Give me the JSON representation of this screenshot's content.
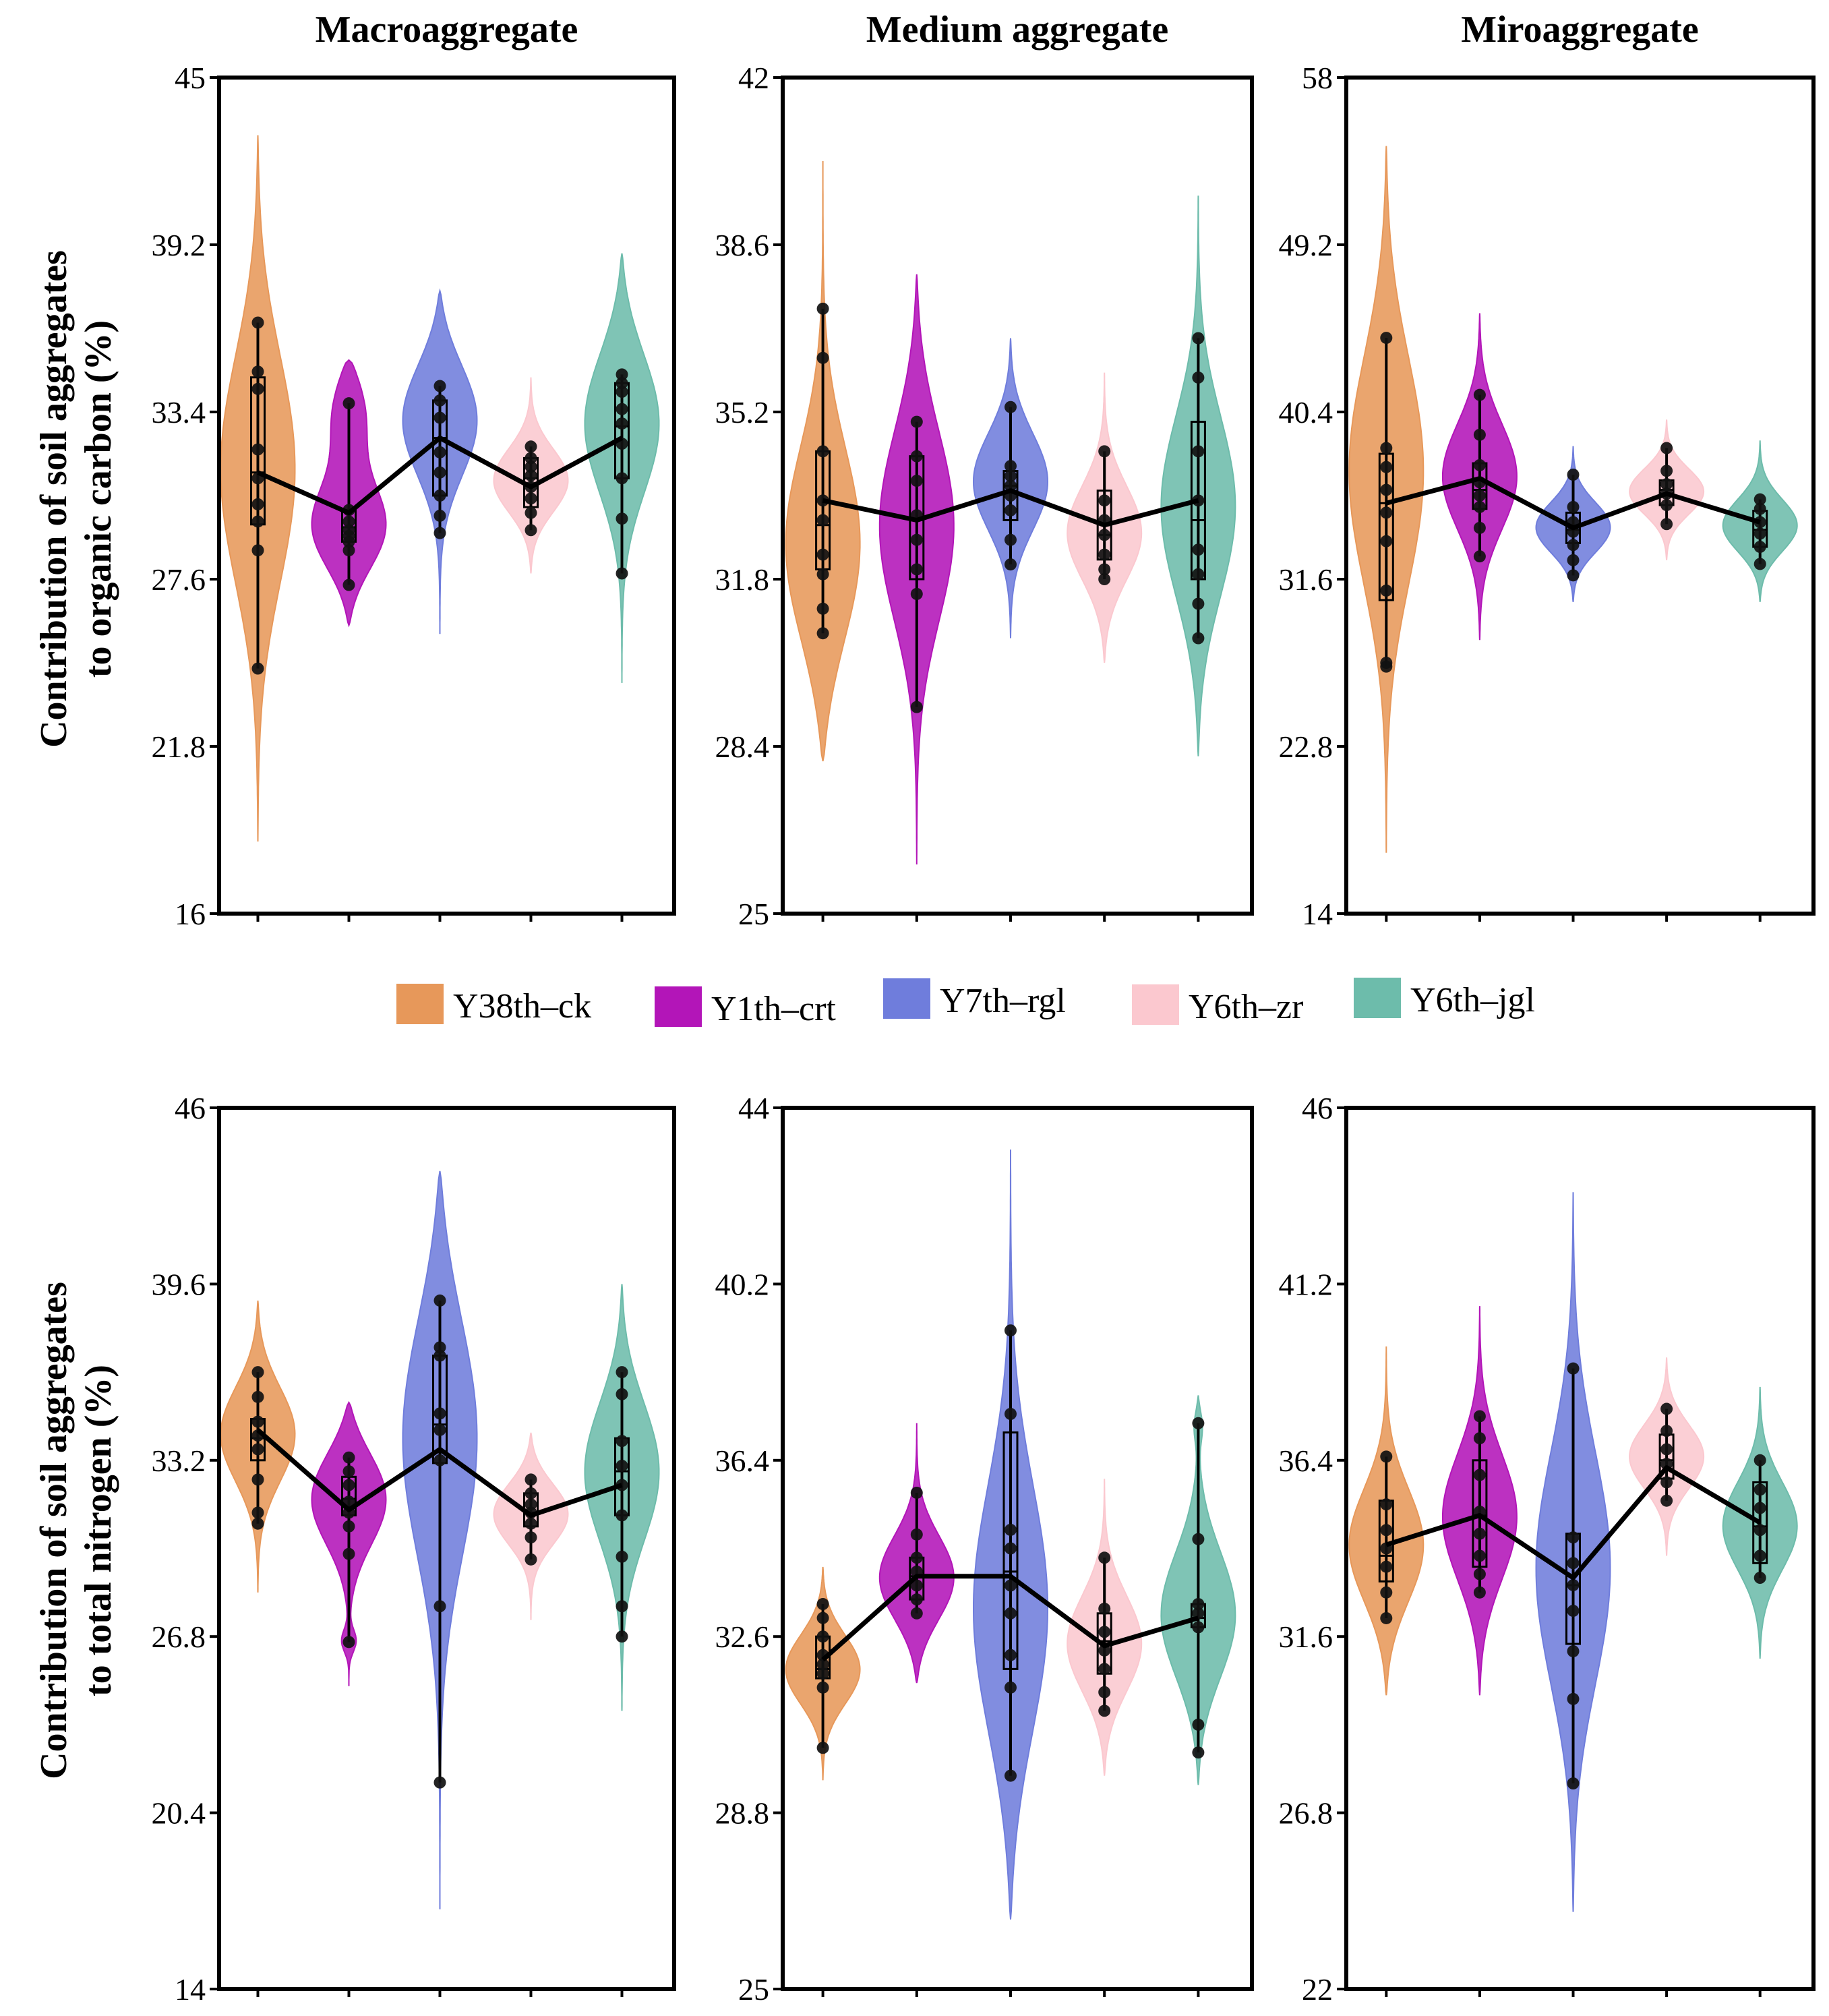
{
  "groups": [
    "Y38th–ck",
    "Y1th–crt",
    "Y7th–rgl",
    "Y6th–zr",
    "Y6th–jgl"
  ],
  "colors": {
    "Y38th–ck": "#e7985a",
    "Y1th–crt": "#b315b8",
    "Y7th–rgl": "#6f7ddc",
    "Y6th–zr": "#fbc8cf",
    "Y6th–jgl": "#6dbcab",
    "frame": "#000000",
    "mean_line": "#000000"
  },
  "legend": {
    "items": [
      "Y38th–ck",
      "Y1th–crt",
      "Y7th–rgl",
      "Y6th–zr",
      "Y6th–jgl"
    ]
  },
  "rows": [
    {
      "ylabel_line1": "Contribution of soil aggregates",
      "ylabel_line2": "to organic carbon (%)"
    },
    {
      "ylabel_line1": "Contribution of soil aggregates",
      "ylabel_line2": "to total nitrogen (%)"
    }
  ],
  "chart_data": [
    {
      "type": "violin",
      "row": 0,
      "col": 0,
      "title": "Macroaggregate",
      "ylabel": "Contribution of soil aggregates to organic carbon (%)",
      "ylim": [
        16,
        45
      ],
      "ticks": [
        "16",
        "21.8",
        "27.6",
        "33.4",
        "39.2",
        "45"
      ],
      "categories": [
        "Y38th–ck",
        "Y1th–crt",
        "Y7th–rgl",
        "Y6th–zr",
        "Y6th–jgl"
      ],
      "series": [
        {
          "name": "Y38th–ck",
          "range": [
            18.5,
            43
          ],
          "peaks": [
            [
              31.5,
              1
            ]
          ],
          "box": [
            29.5,
            31.3,
            34.6
          ],
          "mean": 31.3,
          "points": [
            24.5,
            28.6,
            29.6,
            30.2,
            31.1,
            32.1,
            34.2,
            34.8,
            36.5
          ]
        },
        {
          "name": "Y1th–crt",
          "range": [
            26,
            35.2
          ],
          "peaks": [
            [
              29.3,
              1
            ],
            [
              33.7,
              0.55
            ]
          ],
          "box": [
            28.9,
            29.4,
            30
          ],
          "mean": 29.9,
          "points": [
            27.4,
            28.6,
            28.9,
            29.1,
            29.3,
            29.6,
            30.0,
            33.7
          ]
        },
        {
          "name": "Y7th–rgl",
          "range": [
            25.7,
            37.6
          ],
          "peaks": [
            [
              33.3,
              1
            ]
          ],
          "box": [
            30.5,
            32.5,
            33.8
          ],
          "mean": 32.5,
          "points": [
            29.2,
            29.8,
            30.5,
            31.3,
            32.0,
            33.2,
            33.8,
            34.3
          ]
        },
        {
          "name": "Y6th–zr",
          "range": [
            27.8,
            34.6
          ],
          "peaks": [
            [
              31,
              1
            ]
          ],
          "box": [
            30.1,
            31.1,
            31.8
          ],
          "mean": 30.8,
          "points": [
            29.3,
            29.9,
            30.4,
            30.8,
            31.2,
            31.5,
            31.8,
            32.2
          ]
        },
        {
          "name": "Y6th–jgl",
          "range": [
            24,
            38.9
          ],
          "peaks": [
            [
              33.2,
              1
            ]
          ],
          "box": [
            31.1,
            32.9,
            34.4
          ],
          "mean": 32.5,
          "points": [
            27.8,
            29.7,
            31.1,
            32.3,
            33.0,
            33.5,
            34.1,
            34.4,
            34.7
          ]
        }
      ]
    },
    {
      "type": "violin",
      "row": 0,
      "col": 1,
      "title": "Medium aggregate",
      "ylabel": "",
      "ylim": [
        25,
        42
      ],
      "ticks": [
        "25",
        "28.4",
        "31.8",
        "35.2",
        "38.6",
        "42"
      ],
      "categories": [
        "Y38th–ck",
        "Y1th–crt",
        "Y7th–rgl",
        "Y6th–zr",
        "Y6th–jgl"
      ],
      "series": [
        {
          "name": "Y38th–ck",
          "range": [
            28.1,
            40.3
          ],
          "peaks": [
            [
              32.3,
              1
            ]
          ],
          "box": [
            32,
            32.9,
            34.4
          ],
          "mean": 33.4,
          "points": [
            30.7,
            31.2,
            31.9,
            32.3,
            33.0,
            33.4,
            34.4,
            36.3,
            37.3
          ]
        },
        {
          "name": "Y1th–crt",
          "range": [
            26,
            38
          ],
          "peaks": [
            [
              33,
              1
            ]
          ],
          "box": [
            31.8,
            33,
            34.3
          ],
          "mean": 33,
          "points": [
            29.2,
            31.5,
            32.0,
            32.6,
            33.1,
            33.8,
            34.3,
            35.0
          ]
        },
        {
          "name": "Y7th–rgl",
          "range": [
            30.6,
            36.7
          ],
          "peaks": [
            [
              33.8,
              1
            ]
          ],
          "box": [
            33,
            33.7,
            34
          ],
          "mean": 33.6,
          "points": [
            32.1,
            32.6,
            33.2,
            33.5,
            33.7,
            33.9,
            34.1,
            35.3
          ]
        },
        {
          "name": "Y6th–zr",
          "range": [
            30.1,
            36
          ],
          "peaks": [
            [
              32.7,
              1
            ]
          ],
          "box": [
            32.2,
            32.7,
            33.6
          ],
          "mean": 32.9,
          "points": [
            31.8,
            32.0,
            32.3,
            32.7,
            33.0,
            33.4,
            34.4
          ]
        },
        {
          "name": "Y6th–jgl",
          "range": [
            28.2,
            39.6
          ],
          "peaks": [
            [
              33.2,
              1
            ]
          ],
          "box": [
            31.8,
            33,
            35
          ],
          "mean": 33.4,
          "points": [
            30.6,
            31.3,
            31.9,
            32.4,
            33.4,
            34.4,
            35.9,
            36.7
          ]
        }
      ]
    },
    {
      "type": "violin",
      "row": 0,
      "col": 2,
      "title": "Miroaggregate",
      "ylabel": "",
      "ylim": [
        14,
        58
      ],
      "ticks": [
        "14",
        "22.8",
        "31.6",
        "40.4",
        "49.2",
        "58"
      ],
      "categories": [
        "Y38th–ck",
        "Y1th–crt",
        "Y7th–rgl",
        "Y6th–zr",
        "Y6th–jgl"
      ],
      "series": [
        {
          "name": "Y38th–ck",
          "range": [
            17.2,
            54.4
          ],
          "peaks": [
            [
              37.5,
              1
            ]
          ],
          "box": [
            30.5,
            35.6,
            38.2
          ],
          "mean": 35.6,
          "points": [
            27,
            27.2,
            31,
            33.6,
            35.1,
            36.3,
            37.5,
            38.5,
            44.3
          ]
        },
        {
          "name": "Y1th–crt",
          "range": [
            28.4,
            45.6
          ],
          "peaks": [
            [
              37,
              1
            ]
          ],
          "box": [
            35.3,
            36.3,
            37.7
          ],
          "mean": 36.9,
          "points": [
            32.8,
            34.3,
            35.4,
            36.0,
            36.7,
            37.6,
            39.2,
            41.3
          ]
        },
        {
          "name": "Y7th–rgl",
          "range": [
            30.4,
            38.6
          ],
          "peaks": [
            [
              34.3,
              1
            ]
          ],
          "box": [
            33.5,
            34.2,
            35.1
          ],
          "mean": 34.3,
          "points": [
            31.8,
            32.6,
            33.4,
            34.1,
            34.6,
            35.4,
            37.1
          ]
        },
        {
          "name": "Y6th–zr",
          "range": [
            32.6,
            40
          ],
          "peaks": [
            [
              36.2,
              1
            ]
          ],
          "box": [
            35.5,
            36.3,
            36.8
          ],
          "mean": 36.1,
          "points": [
            34.5,
            35.5,
            36.1,
            36.6,
            37.3,
            38.5
          ]
        },
        {
          "name": "Y6th–jgl",
          "range": [
            30.4,
            38.9
          ],
          "peaks": [
            [
              34.4,
              1
            ]
          ],
          "box": [
            33.3,
            34.2,
            35.2
          ],
          "mean": 34.6,
          "points": [
            32.4,
            33.3,
            34.0,
            34.6,
            35.3,
            35.8
          ]
        }
      ]
    },
    {
      "type": "violin",
      "row": 1,
      "col": 0,
      "title": "",
      "ylabel": "Contribution of soil aggregates to total nitrogen (%)",
      "ylim": [
        14,
        46
      ],
      "ticks": [
        "14",
        "20.4",
        "26.8",
        "33.2",
        "39.6",
        "46"
      ],
      "categories": [
        "Y38th–ck",
        "Y1th–crt",
        "Y7th–rgl",
        "Y6th–zr",
        "Y6th–jgl"
      ],
      "series": [
        {
          "name": "Y38th–ck",
          "range": [
            28.4,
            39
          ],
          "peaks": [
            [
              34.2,
              1
            ]
          ],
          "box": [
            33.2,
            34,
            34.7
          ],
          "mean": 34.3,
          "points": [
            30.9,
            31.3,
            32.5,
            33.6,
            34.1,
            34.6,
            35.5,
            36.4
          ]
        },
        {
          "name": "Y1th–crt",
          "range": [
            25,
            35.3
          ],
          "peaks": [
            [
              32,
              1
            ],
            [
              26.6,
              0.25
            ]
          ],
          "box": [
            31.2,
            31.8,
            32.6
          ],
          "mean": 31.4,
          "points": [
            26.6,
            29.8,
            30.8,
            31.3,
            31.7,
            32.3,
            32.8,
            33.3
          ]
        },
        {
          "name": "Y7th–rgl",
          "range": [
            16.9,
            43.7
          ],
          "peaks": [
            [
              34.5,
              1
            ]
          ],
          "box": [
            33.1,
            34.5,
            37
          ],
          "mean": 33.6,
          "points": [
            21.5,
            27.9,
            33.2,
            34.3,
            34.9,
            37.0,
            37.3,
            39.0
          ]
        },
        {
          "name": "Y6th–zr",
          "range": [
            27.4,
            34.2
          ],
          "peaks": [
            [
              31.3,
              1
            ]
          ],
          "box": [
            30.8,
            31.3,
            32
          ],
          "mean": 31.2,
          "points": [
            29.6,
            30.4,
            30.9,
            31.3,
            31.6,
            32.0,
            32.5
          ]
        },
        {
          "name": "Y6th–jgl",
          "range": [
            24.1,
            39.6
          ],
          "peaks": [
            [
              32.9,
              1
            ]
          ],
          "box": [
            31.2,
            32.8,
            34
          ],
          "mean": 32.3,
          "points": [
            26.8,
            27.9,
            29.7,
            31.2,
            32.3,
            33.0,
            33.9,
            35.6,
            36.4
          ]
        }
      ]
    },
    {
      "type": "violin",
      "row": 1,
      "col": 1,
      "title": "",
      "ylabel": "",
      "ylim": [
        25,
        44
      ],
      "ticks": [
        "25",
        "28.8",
        "32.6",
        "36.4",
        "40.2",
        "44"
      ],
      "categories": [
        "Y38th–ck",
        "Y1th–crt",
        "Y7th–rgl",
        "Y6th–zr",
        "Y6th–jgl"
      ],
      "series": [
        {
          "name": "Y38th–ck",
          "range": [
            29.5,
            34.1
          ],
          "peaks": [
            [
              31.9,
              1
            ]
          ],
          "box": [
            31.7,
            31.9,
            32.6
          ],
          "mean": 32.1,
          "points": [
            30.2,
            31.5,
            31.8,
            32.0,
            32.2,
            32.6,
            33.0,
            33.3
          ]
        },
        {
          "name": "Y1th–crt",
          "range": [
            31.6,
            37.2
          ],
          "peaks": [
            [
              33.8,
              1
            ]
          ],
          "box": [
            33.4,
            33.9,
            34.3
          ],
          "mean": 33.9,
          "points": [
            33.1,
            33.4,
            33.7,
            34.0,
            34.3,
            34.8,
            35.7
          ]
        },
        {
          "name": "Y7th–rgl",
          "range": [
            26.5,
            43.1
          ],
          "peaks": [
            [
              33,
              1
            ]
          ],
          "box": [
            31.9,
            34,
            37
          ],
          "mean": 33.9,
          "points": [
            29.6,
            31.5,
            32.2,
            33.1,
            33.7,
            34.5,
            34.9,
            37.4,
            39.2
          ]
        },
        {
          "name": "Y6th–zr",
          "range": [
            29.6,
            36
          ],
          "peaks": [
            [
              32.4,
              1
            ]
          ],
          "box": [
            31.8,
            32.5,
            33.1
          ],
          "mean": 32.4,
          "points": [
            31.0,
            31.4,
            31.9,
            32.3,
            32.7,
            33.2,
            34.3
          ]
        },
        {
          "name": "Y6th–jgl",
          "range": [
            29.4,
            37.8
          ],
          "peaks": [
            [
              33,
              1
            ],
            [
              37.2,
              0.2
            ]
          ],
          "box": [
            32.8,
            33,
            33.3
          ],
          "mean": 33,
          "points": [
            30.1,
            30.7,
            32.8,
            33.1,
            33.3,
            34.7,
            37.2
          ]
        }
      ]
    },
    {
      "type": "violin",
      "row": 1,
      "col": 2,
      "title": "",
      "ylabel": "",
      "ylim": [
        22,
        46
      ],
      "ticks": [
        "22",
        "26.8",
        "31.6",
        "36.4",
        "41.2",
        "46"
      ],
      "categories": [
        "Y38th–ck",
        "Y1th–crt",
        "Y7th–rgl",
        "Y6th–zr",
        "Y6th–jgl"
      ],
      "series": [
        {
          "name": "Y38th–ck",
          "range": [
            30,
            39.5
          ],
          "peaks": [
            [
              34,
              1
            ]
          ],
          "box": [
            33.1,
            33.8,
            35.3
          ],
          "mean": 34.1,
          "points": [
            32.1,
            32.8,
            33.5,
            34.0,
            34.5,
            35.2,
            36.5
          ]
        },
        {
          "name": "Y1th–crt",
          "range": [
            30,
            40.6
          ],
          "peaks": [
            [
              34.8,
              1
            ]
          ],
          "box": [
            33.5,
            34.9,
            36.4
          ],
          "mean": 34.9,
          "points": [
            32.8,
            33.3,
            33.8,
            34.4,
            35.0,
            36.0,
            37.0,
            37.6
          ]
        },
        {
          "name": "Y7th–rgl",
          "range": [
            24.1,
            43.7
          ],
          "peaks": [
            [
              33.4,
              1
            ]
          ],
          "box": [
            31.4,
            33,
            34.4
          ],
          "mean": 33.2,
          "points": [
            27.6,
            29.9,
            31.2,
            32.3,
            33.0,
            33.6,
            34.3,
            38.9
          ]
        },
        {
          "name": "Y6th–zr",
          "range": [
            33.8,
            39.2
          ],
          "peaks": [
            [
              36.5,
              1
            ]
          ],
          "box": [
            35.9,
            36.4,
            37.1
          ],
          "mean": 36.2,
          "points": [
            35.3,
            35.8,
            36.3,
            36.7,
            37.2,
            37.8
          ]
        },
        {
          "name": "Y6th–jgl",
          "range": [
            31,
            38.4
          ],
          "peaks": [
            [
              34.6,
              1
            ]
          ],
          "box": [
            33.6,
            34.6,
            35.8
          ],
          "mean": 34.7,
          "points": [
            33.2,
            33.8,
            34.5,
            35.1,
            35.6,
            36.4
          ]
        }
      ]
    }
  ]
}
